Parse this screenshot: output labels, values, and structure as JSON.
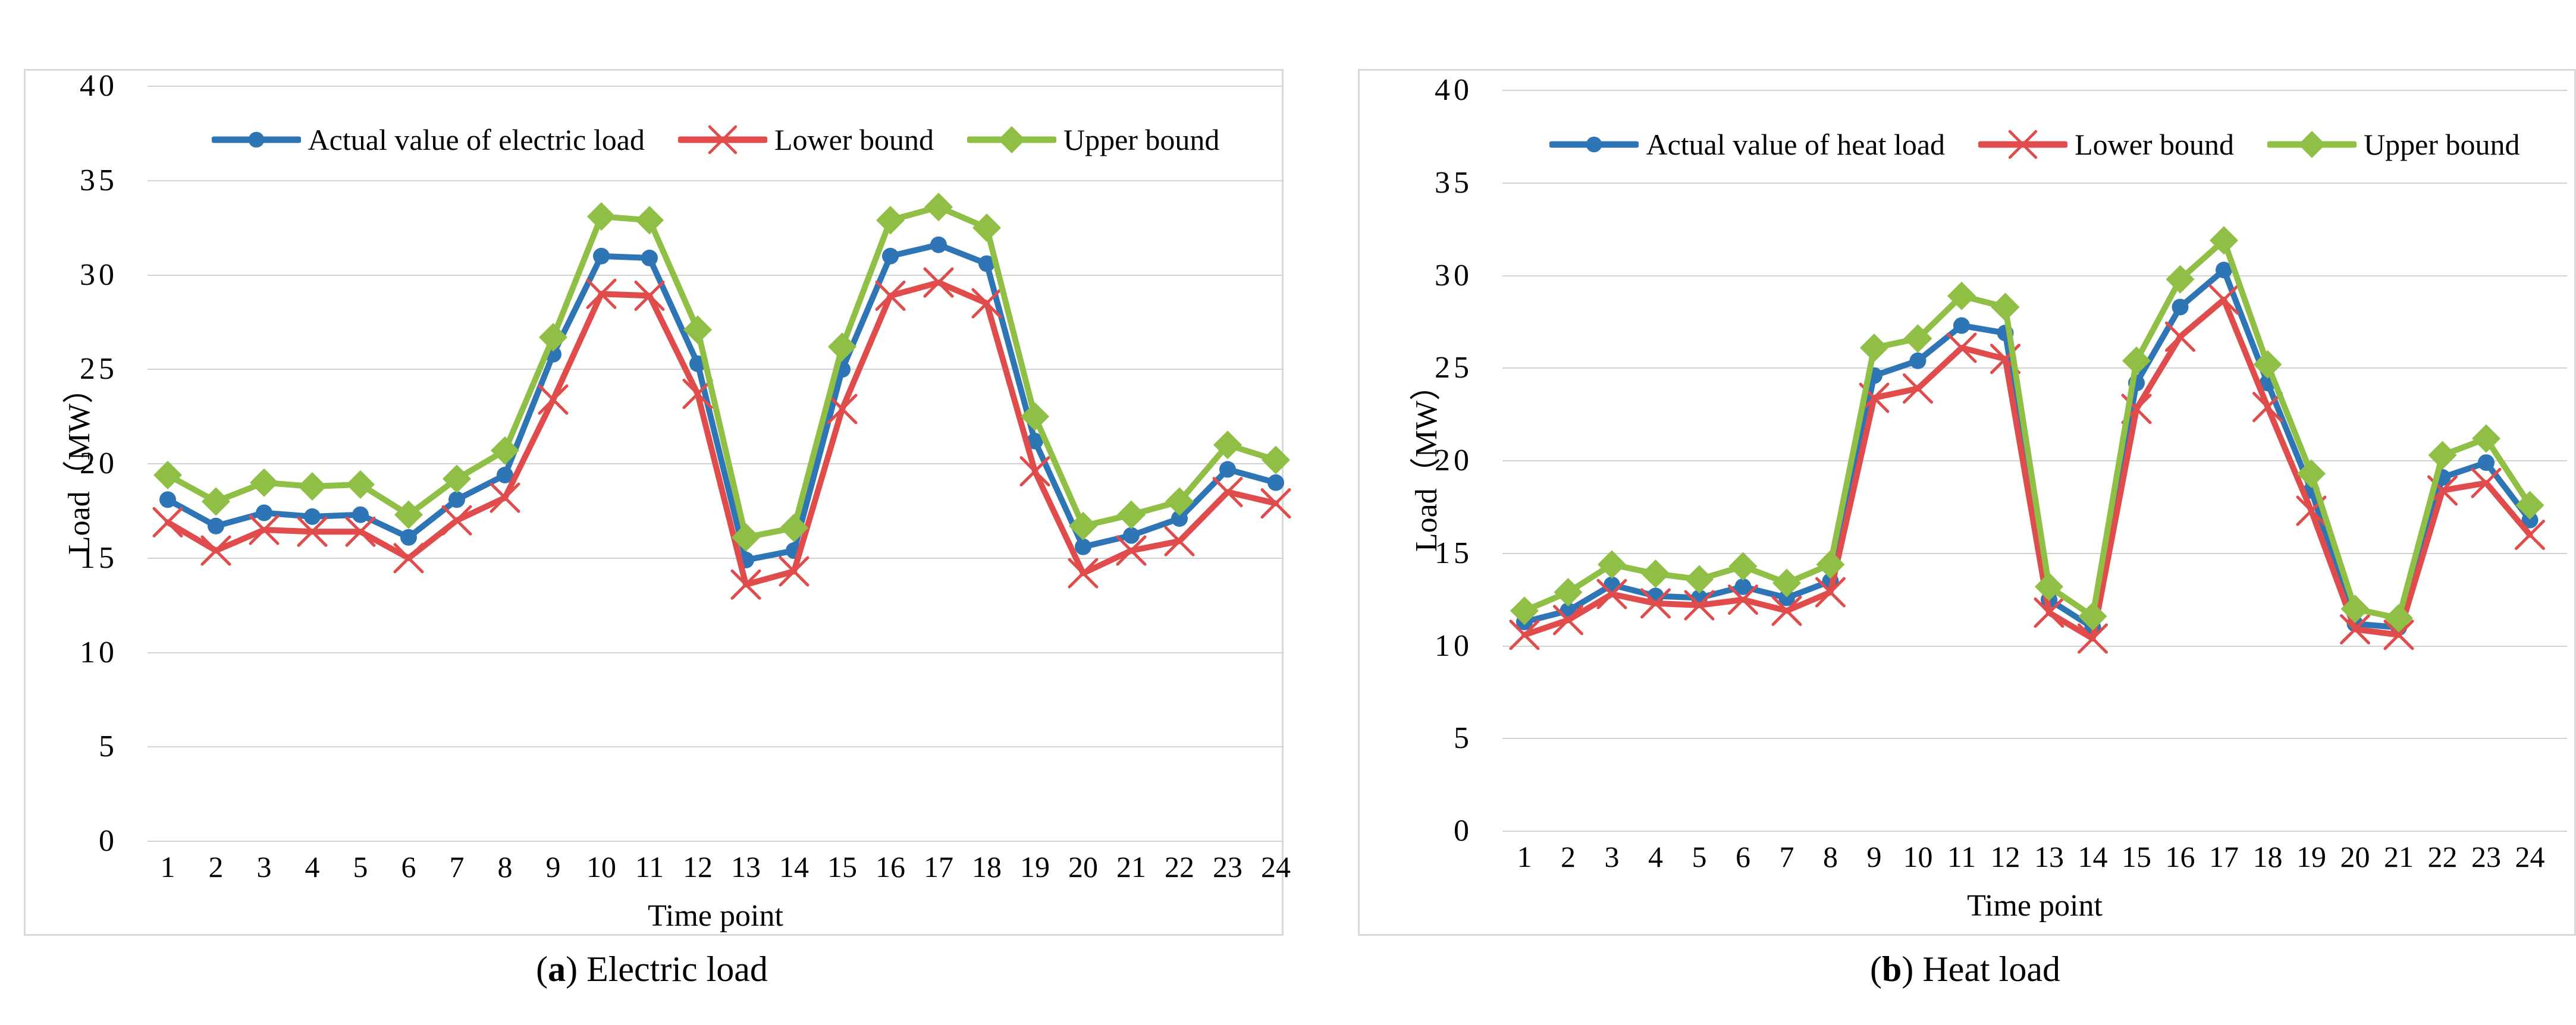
{
  "figure": {
    "captions": [
      {
        "open": "(",
        "letter": "a",
        "close": ")",
        "text": " Electric load"
      },
      {
        "open": "(",
        "letter": "b",
        "close": ")",
        "text": " Heat load"
      }
    ]
  },
  "chart_data": [
    {
      "type": "line",
      "title": "(a) Electric load",
      "xlabel": "Time point",
      "ylabel": "Load（MW）",
      "x": [
        1,
        2,
        3,
        4,
        5,
        6,
        7,
        8,
        9,
        10,
        11,
        12,
        13,
        14,
        15,
        16,
        17,
        18,
        19,
        20,
        21,
        22,
        23,
        24
      ],
      "ylim": [
        0,
        40
      ],
      "yticks": [
        0,
        5,
        10,
        15,
        20,
        25,
        30,
        35,
        40
      ],
      "grid": true,
      "legend_position": "top",
      "gridline_color": "#d2d2d2",
      "series": [
        {
          "name": "Actual value of electric load",
          "color": "#2e75b6",
          "marker": "circle",
          "values": [
            18.1,
            16.7,
            17.4,
            17.2,
            17.3,
            16.1,
            18.1,
            19.4,
            25.8,
            31.0,
            30.9,
            25.3,
            14.9,
            15.4,
            25.0,
            31.0,
            31.6,
            30.6,
            21.2,
            15.6,
            16.2,
            17.1,
            19.7,
            19.0
          ]
        },
        {
          "name": "Lower bound",
          "color": "#e04c4c",
          "marker": "x",
          "values": [
            16.9,
            15.4,
            16.5,
            16.4,
            16.4,
            15.0,
            17.0,
            18.2,
            23.4,
            29.0,
            28.9,
            23.7,
            13.6,
            14.3,
            22.9,
            28.9,
            29.6,
            28.5,
            19.6,
            14.2,
            15.4,
            15.9,
            18.5,
            17.9
          ]
        },
        {
          "name": "Upper bound",
          "color": "#8fbf44",
          "marker": "diamond",
          "values": [
            19.4,
            18.0,
            19.0,
            18.8,
            18.9,
            17.3,
            19.2,
            20.7,
            26.7,
            33.1,
            32.9,
            27.1,
            16.1,
            16.6,
            26.2,
            32.9,
            33.6,
            32.5,
            22.5,
            16.7,
            17.3,
            18.0,
            21.0,
            20.2
          ]
        }
      ]
    },
    {
      "type": "line",
      "title": "(b) Heat load",
      "xlabel": "Time point",
      "ylabel": "Load（MW）",
      "x": [
        1,
        2,
        3,
        4,
        5,
        6,
        7,
        8,
        9,
        10,
        11,
        12,
        13,
        14,
        15,
        16,
        17,
        18,
        19,
        20,
        21,
        22,
        23,
        24
      ],
      "ylim": [
        0,
        40
      ],
      "yticks": [
        0,
        5,
        10,
        15,
        20,
        25,
        30,
        35,
        40
      ],
      "grid": true,
      "legend_position": "top",
      "gridline_color": "#d2d2d2",
      "series": [
        {
          "name": "Actual value of heat load",
          "color": "#2e75b6",
          "marker": "circle",
          "values": [
            11.3,
            11.9,
            13.3,
            12.7,
            12.6,
            13.2,
            12.6,
            13.5,
            24.6,
            25.4,
            27.3,
            26.9,
            12.5,
            11.0,
            24.2,
            28.3,
            30.3,
            24.2,
            18.4,
            11.2,
            11.0,
            19.1,
            19.9,
            16.8
          ]
        },
        {
          "name": "Lower bound",
          "color": "#e04c4c",
          "marker": "x",
          "values": [
            10.6,
            11.4,
            12.8,
            12.3,
            12.2,
            12.5,
            11.9,
            12.9,
            23.4,
            23.9,
            26.1,
            25.5,
            11.8,
            10.4,
            22.8,
            26.7,
            28.7,
            22.9,
            17.3,
            10.9,
            10.6,
            18.4,
            18.8,
            16.0
          ]
        },
        {
          "name": "Upper bound",
          "color": "#8fbf44",
          "marker": "diamond",
          "values": [
            11.9,
            12.9,
            14.4,
            13.9,
            13.6,
            14.3,
            13.4,
            14.4,
            26.1,
            26.6,
            28.9,
            28.3,
            13.2,
            11.6,
            25.4,
            29.8,
            31.9,
            25.2,
            19.3,
            12.0,
            11.5,
            20.3,
            21.2,
            17.6
          ]
        }
      ]
    }
  ]
}
